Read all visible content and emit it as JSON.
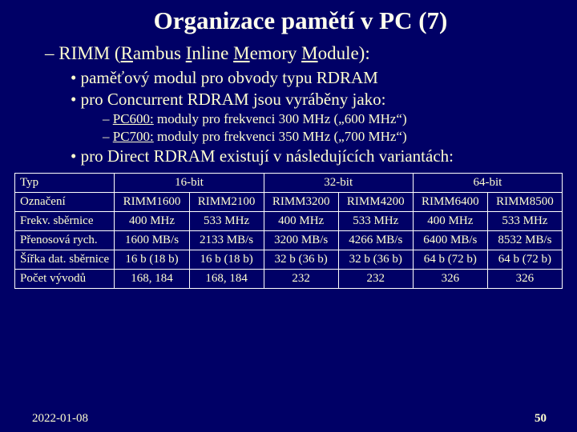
{
  "title": "Organizace pamětí v PC (7)",
  "heading": {
    "dash": "– ",
    "pre": "RIMM (",
    "r": "R",
    "ambus": "ambus ",
    "i": "I",
    "nline": "nline ",
    "m": "M",
    "emory": "emory ",
    "m2": "M",
    "odule": "odule):"
  },
  "bullets2": {
    "b1": "paměťový modul pro obvody typu RDRAM",
    "b2": "pro Concurrent RDRAM jsou vyráběny jako:",
    "b3": "pro Direct RDRAM existují v následujících variantách:"
  },
  "bullets3": {
    "dash": "– ",
    "pc600_label": "PC600:",
    "pc600_text": " moduly pro frekvenci 300 MHz („600 MHz“)",
    "pc700_label": "PC700:",
    "pc700_text": " moduly pro frekvenci 350 MHz („700 MHz“)"
  },
  "table": {
    "rows": {
      "typ": "Typ",
      "oznaceni": "Označení",
      "frekv": "Frekv. sběrnice",
      "prenos": "Přenosová rych.",
      "sirka": "Šířka dat. sběrnice",
      "pocet": "Počet vývodů"
    },
    "typ": {
      "c16": "16-bit",
      "c32": "32-bit",
      "c64": "64-bit"
    },
    "ozn": {
      "c1": "RIMM1600",
      "c2": "RIMM2100",
      "c3": "RIMM3200",
      "c4": "RIMM4200",
      "c5": "RIMM6400",
      "c6": "RIMM8500"
    },
    "frekv": {
      "c1": "400 MHz",
      "c2": "533 MHz",
      "c3": "400 MHz",
      "c4": "533 MHz",
      "c5": "400 MHz",
      "c6": "533 MHz"
    },
    "prenos": {
      "c1": "1600 MB/s",
      "c2": "2133 MB/s",
      "c3": "3200 MB/s",
      "c4": "4266 MB/s",
      "c5": "6400 MB/s",
      "c6": "8532 MB/s"
    },
    "sirka": {
      "c1": "16 b (18 b)",
      "c2": "16 b (18 b)",
      "c3": "32 b (36 b)",
      "c4": "32 b (36 b)",
      "c5": "64 b (72 b)",
      "c6": "64 b (72 b)"
    },
    "pocet": {
      "c1": "168, 184",
      "c2": "168, 184",
      "c3": "232",
      "c4": "232",
      "c5": "326",
      "c6": "326"
    }
  },
  "footer": {
    "date": "2022-01-08",
    "page": "50"
  }
}
